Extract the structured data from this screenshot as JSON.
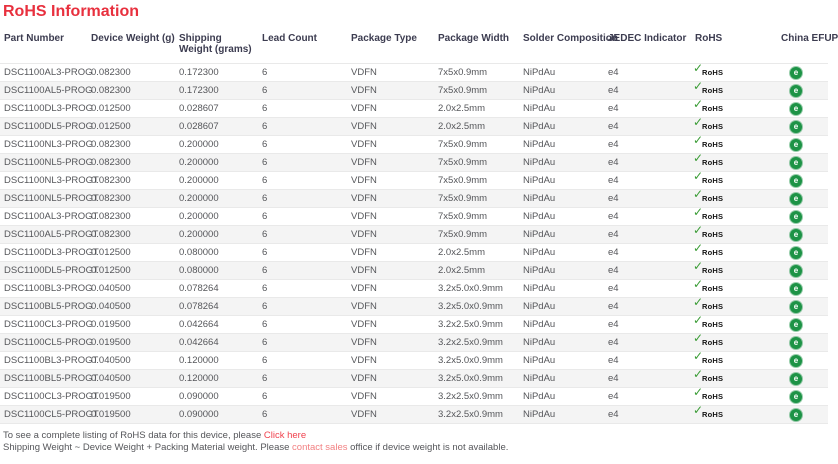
{
  "page_title": "RoHS Information",
  "colors": {
    "title_red": "#e8303e",
    "link_red": "#f0424e",
    "link_salmon": "#f28082",
    "rohs_check_green": "#3a9c35",
    "efup_green": "#1d9346",
    "row_stripe": "#f4f4f4"
  },
  "icons": {
    "rohs_check": "✓",
    "rohs_label": "RoHS",
    "china_efup_glyph": "e"
  },
  "table": {
    "columns": [
      "Part Number",
      "Device Weight (g)",
      "Shipping Weight (grams)",
      "Lead Count",
      "Package Type",
      "Package Width",
      "Solder Composition",
      "JEDEC Indicator",
      "RoHS",
      "China EFUP"
    ],
    "rows": [
      {
        "part_number": "DSC1100AL3-PROG",
        "device_weight": "0.082300",
        "shipping_weight": "0.172300",
        "lead_count": "6",
        "package_type": "VDFN",
        "package_width": "7x5x0.9mm",
        "solder_composition": "NiPdAu",
        "jedec_indicator": "e4",
        "rohs": "compliant",
        "china_efup": "efup-20"
      },
      {
        "part_number": "DSC1100AL5-PROG",
        "device_weight": "0.082300",
        "shipping_weight": "0.172300",
        "lead_count": "6",
        "package_type": "VDFN",
        "package_width": "7x5x0.9mm",
        "solder_composition": "NiPdAu",
        "jedec_indicator": "e4",
        "rohs": "compliant",
        "china_efup": "efup-20"
      },
      {
        "part_number": "DSC1100DL3-PROG",
        "device_weight": "0.012500",
        "shipping_weight": "0.028607",
        "lead_count": "6",
        "package_type": "VDFN",
        "package_width": "2.0x2.5mm",
        "solder_composition": "NiPdAu",
        "jedec_indicator": "e4",
        "rohs": "compliant",
        "china_efup": "efup-20"
      },
      {
        "part_number": "DSC1100DL5-PROG",
        "device_weight": "0.012500",
        "shipping_weight": "0.028607",
        "lead_count": "6",
        "package_type": "VDFN",
        "package_width": "2.0x2.5mm",
        "solder_composition": "NiPdAu",
        "jedec_indicator": "e4",
        "rohs": "compliant",
        "china_efup": "efup-20"
      },
      {
        "part_number": "DSC1100NL3-PROG",
        "device_weight": "0.082300",
        "shipping_weight": "0.200000",
        "lead_count": "6",
        "package_type": "VDFN",
        "package_width": "7x5x0.9mm",
        "solder_composition": "NiPdAu",
        "jedec_indicator": "e4",
        "rohs": "compliant",
        "china_efup": "efup-20"
      },
      {
        "part_number": "DSC1100NL5-PROG",
        "device_weight": "0.082300",
        "shipping_weight": "0.200000",
        "lead_count": "6",
        "package_type": "VDFN",
        "package_width": "7x5x0.9mm",
        "solder_composition": "NiPdAu",
        "jedec_indicator": "e4",
        "rohs": "compliant",
        "china_efup": "efup-20"
      },
      {
        "part_number": "DSC1100NL3-PROGT",
        "device_weight": "0.082300",
        "shipping_weight": "0.200000",
        "lead_count": "6",
        "package_type": "VDFN",
        "package_width": "7x5x0.9mm",
        "solder_composition": "NiPdAu",
        "jedec_indicator": "e4",
        "rohs": "compliant",
        "china_efup": "efup-20"
      },
      {
        "part_number": "DSC1100NL5-PROGT",
        "device_weight": "0.082300",
        "shipping_weight": "0.200000",
        "lead_count": "6",
        "package_type": "VDFN",
        "package_width": "7x5x0.9mm",
        "solder_composition": "NiPdAu",
        "jedec_indicator": "e4",
        "rohs": "compliant",
        "china_efup": "efup-20"
      },
      {
        "part_number": "DSC1100AL3-PROGT",
        "device_weight": "0.082300",
        "shipping_weight": "0.200000",
        "lead_count": "6",
        "package_type": "VDFN",
        "package_width": "7x5x0.9mm",
        "solder_composition": "NiPdAu",
        "jedec_indicator": "e4",
        "rohs": "compliant",
        "china_efup": "efup-20"
      },
      {
        "part_number": "DSC1100AL5-PROGT",
        "device_weight": "0.082300",
        "shipping_weight": "0.200000",
        "lead_count": "6",
        "package_type": "VDFN",
        "package_width": "7x5x0.9mm",
        "solder_composition": "NiPdAu",
        "jedec_indicator": "e4",
        "rohs": "compliant",
        "china_efup": "efup-20"
      },
      {
        "part_number": "DSC1100DL3-PROGT",
        "device_weight": "0.012500",
        "shipping_weight": "0.080000",
        "lead_count": "6",
        "package_type": "VDFN",
        "package_width": "2.0x2.5mm",
        "solder_composition": "NiPdAu",
        "jedec_indicator": "e4",
        "rohs": "compliant",
        "china_efup": "efup-20"
      },
      {
        "part_number": "DSC1100DL5-PROGT",
        "device_weight": "0.012500",
        "shipping_weight": "0.080000",
        "lead_count": "6",
        "package_type": "VDFN",
        "package_width": "2.0x2.5mm",
        "solder_composition": "NiPdAu",
        "jedec_indicator": "e4",
        "rohs": "compliant",
        "china_efup": "efup-20"
      },
      {
        "part_number": "DSC1100BL3-PROG",
        "device_weight": "0.040500",
        "shipping_weight": "0.078264",
        "lead_count": "6",
        "package_type": "VDFN",
        "package_width": "3.2x5.0x0.9mm",
        "solder_composition": "NiPdAu",
        "jedec_indicator": "e4",
        "rohs": "compliant",
        "china_efup": "efup-20"
      },
      {
        "part_number": "DSC1100BL5-PROG",
        "device_weight": "0.040500",
        "shipping_weight": "0.078264",
        "lead_count": "6",
        "package_type": "VDFN",
        "package_width": "3.2x5.0x0.9mm",
        "solder_composition": "NiPdAu",
        "jedec_indicator": "e4",
        "rohs": "compliant",
        "china_efup": "efup-20"
      },
      {
        "part_number": "DSC1100CL3-PROG",
        "device_weight": "0.019500",
        "shipping_weight": "0.042664",
        "lead_count": "6",
        "package_type": "VDFN",
        "package_width": "3.2x2.5x0.9mm",
        "solder_composition": "NiPdAu",
        "jedec_indicator": "e4",
        "rohs": "compliant",
        "china_efup": "efup-20"
      },
      {
        "part_number": "DSC1100CL5-PROG",
        "device_weight": "0.019500",
        "shipping_weight": "0.042664",
        "lead_count": "6",
        "package_type": "VDFN",
        "package_width": "3.2x2.5x0.9mm",
        "solder_composition": "NiPdAu",
        "jedec_indicator": "e4",
        "rohs": "compliant",
        "china_efup": "efup-20"
      },
      {
        "part_number": "DSC1100BL3-PROGT",
        "device_weight": "0.040500",
        "shipping_weight": "0.120000",
        "lead_count": "6",
        "package_type": "VDFN",
        "package_width": "3.2x5.0x0.9mm",
        "solder_composition": "NiPdAu",
        "jedec_indicator": "e4",
        "rohs": "compliant",
        "china_efup": "efup-20"
      },
      {
        "part_number": "DSC1100BL5-PROGT",
        "device_weight": "0.040500",
        "shipping_weight": "0.120000",
        "lead_count": "6",
        "package_type": "VDFN",
        "package_width": "3.2x5.0x0.9mm",
        "solder_composition": "NiPdAu",
        "jedec_indicator": "e4",
        "rohs": "compliant",
        "china_efup": "efup-20"
      },
      {
        "part_number": "DSC1100CL3-PROGT",
        "device_weight": "0.019500",
        "shipping_weight": "0.090000",
        "lead_count": "6",
        "package_type": "VDFN",
        "package_width": "3.2x2.5x0.9mm",
        "solder_composition": "NiPdAu",
        "jedec_indicator": "e4",
        "rohs": "compliant",
        "china_efup": "efup-20"
      },
      {
        "part_number": "DSC1100CL5-PROGT",
        "device_weight": "0.019500",
        "shipping_weight": "0.090000",
        "lead_count": "6",
        "package_type": "VDFN",
        "package_width": "3.2x2.5x0.9mm",
        "solder_composition": "NiPdAu",
        "jedec_indicator": "e4",
        "rohs": "compliant",
        "china_efup": "efup-20"
      }
    ]
  },
  "footer": {
    "line1_text": "To see a complete listing of RoHS data for this device, please ",
    "line1_link": "Click here",
    "line2_text": "Shipping Weight ~ Device Weight + Packing Material weight. Please ",
    "line2_link": "contact sales",
    "line2_suffix": " office if device weight is not available."
  }
}
